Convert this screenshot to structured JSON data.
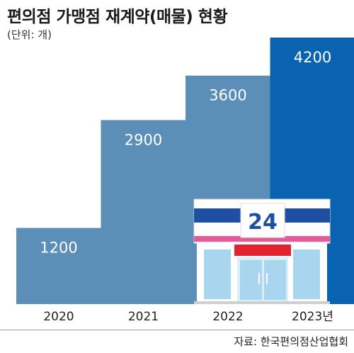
{
  "header": {
    "title": "편의점 가맹점 재계약(매물) 현황",
    "unit": "(단위: 개)"
  },
  "footer": {
    "source": "자료: 한국편의점산업협회"
  },
  "store_sign": "24",
  "colors": {
    "bar": "#5c8fb8",
    "bar_highlight": "#0a63b0",
    "bar_label": "#ffffff",
    "store_blue": "#1f4fa3",
    "store_red": "#e42330",
    "store_pink": "#e65a9a",
    "store_glass": "#a9d5ee"
  },
  "chart_data": {
    "type": "bar",
    "categories": [
      "2020",
      "2021",
      "2022",
      "2023년"
    ],
    "values": [
      1200,
      2900,
      3600,
      4200
    ],
    "data_labels": [
      "1200",
      "2900",
      "3600",
      "4200"
    ],
    "highlight_index": 3,
    "ylim": [
      0,
      4500
    ],
    "grid": false,
    "legend": "none"
  }
}
